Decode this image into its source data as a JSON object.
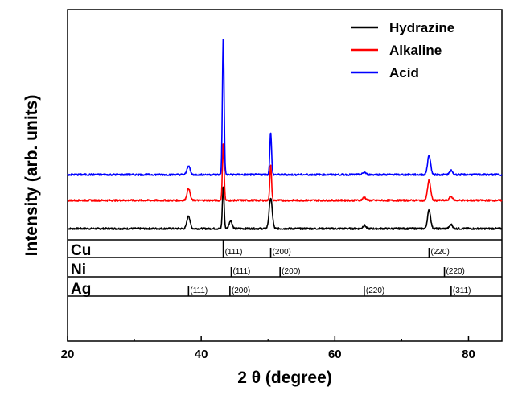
{
  "chart_data": {
    "type": "line",
    "xlabel": "2 θ (degree)",
    "ylabel": "Intensity (arb. units)",
    "xlim": [
      20,
      85
    ],
    "x_ticks": [
      "20",
      "40",
      "60",
      "80"
    ],
    "legend_position": "top-right",
    "series": [
      {
        "name": "Hydrazine",
        "color": "#000000",
        "baseline": 0,
        "peaks": [
          {
            "x": 38.1,
            "height": 16
          },
          {
            "x": 43.3,
            "height": 52
          },
          {
            "x": 44.4,
            "height": 10
          },
          {
            "x": 50.4,
            "height": 38
          },
          {
            "x": 64.4,
            "height": 4
          },
          {
            "x": 74.1,
            "height": 23
          },
          {
            "x": 77.4,
            "height": 5
          }
        ]
      },
      {
        "name": "Alkaline",
        "color": "#ff0000",
        "baseline": 35,
        "peaks": [
          {
            "x": 38.1,
            "height": 15
          },
          {
            "x": 43.3,
            "height": 70
          },
          {
            "x": 50.4,
            "height": 44
          },
          {
            "x": 64.4,
            "height": 4
          },
          {
            "x": 74.1,
            "height": 25
          },
          {
            "x": 77.4,
            "height": 5
          }
        ]
      },
      {
        "name": "Acid",
        "color": "#0000ff",
        "baseline": 67,
        "peaks": [
          {
            "x": 38.1,
            "height": 11
          },
          {
            "x": 43.3,
            "height": 171
          },
          {
            "x": 50.4,
            "height": 53
          },
          {
            "x": 64.4,
            "height": 3
          },
          {
            "x": 74.1,
            "height": 24
          },
          {
            "x": 77.4,
            "height": 5
          }
        ]
      }
    ],
    "reference_patterns": [
      {
        "name": "Cu",
        "lines": [
          {
            "x": 43.3,
            "label": "(111)"
          },
          {
            "x": 50.4,
            "label": "(200)"
          },
          {
            "x": 74.1,
            "label": "(220)"
          }
        ]
      },
      {
        "name": "Ni",
        "lines": [
          {
            "x": 44.5,
            "label": "(111)"
          },
          {
            "x": 51.8,
            "label": "(200)"
          },
          {
            "x": 76.4,
            "label": "(220)"
          }
        ]
      },
      {
        "name": "Ag",
        "lines": [
          {
            "x": 38.1,
            "label": "(111)"
          },
          {
            "x": 44.3,
            "label": "(200)"
          },
          {
            "x": 64.4,
            "label": "(220)"
          },
          {
            "x": 77.4,
            "label": "(311)"
          }
        ]
      }
    ]
  }
}
